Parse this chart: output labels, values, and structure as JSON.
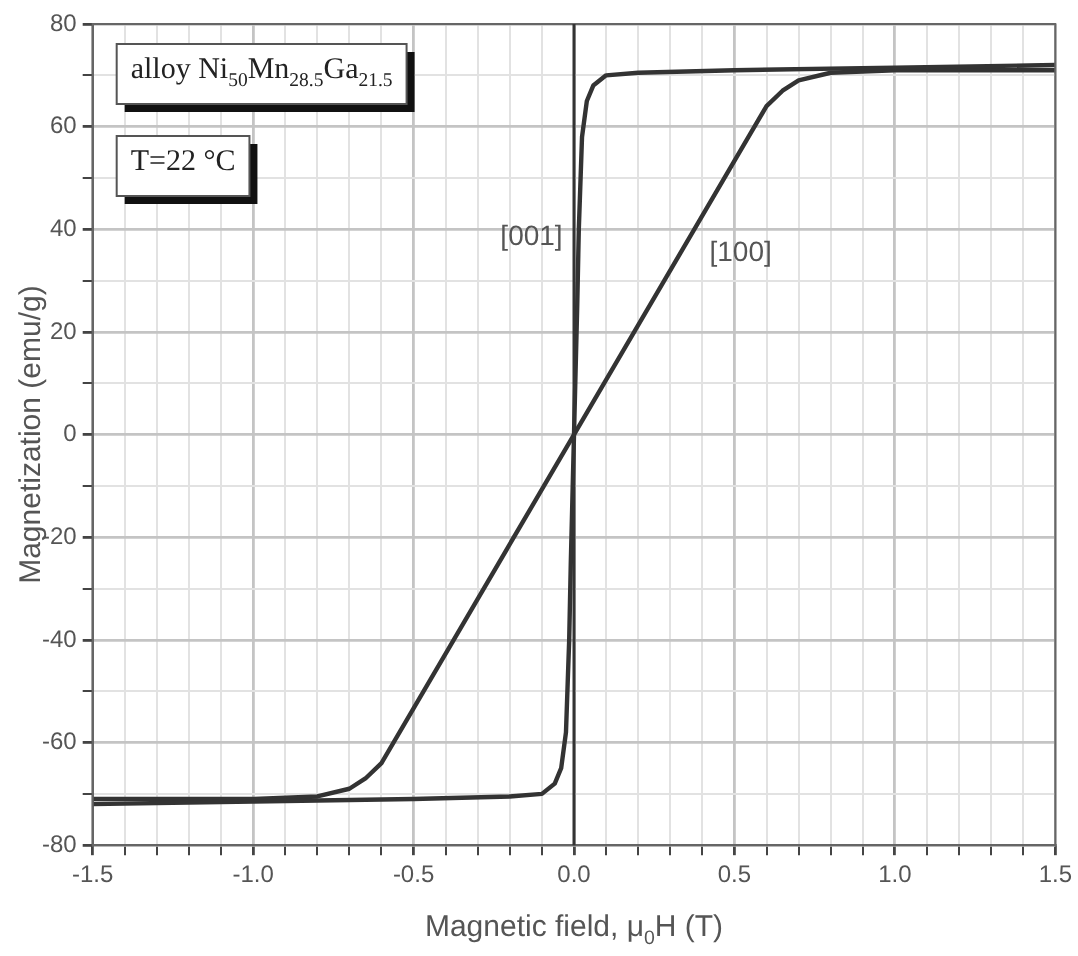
{
  "chart_data": {
    "type": "line",
    "xlabel": "Magnetic field, μ$_{0}$H (T)",
    "ylabel": "Magnetization (emu/g)",
    "xlim": [
      -1.5,
      1.5
    ],
    "ylim": [
      -80,
      80
    ],
    "xticks": [
      -1.5,
      {
        "value": -1.4,
        "label": null
      },
      {
        "value": -1.3,
        "label": null
      },
      {
        "value": -1.2,
        "label": null
      },
      {
        "value": -1.1,
        "label": null
      },
      {
        "value": -1.0,
        "label": "-1.0"
      },
      {
        "value": -0.9,
        "label": null
      },
      {
        "value": -0.8,
        "label": null
      },
      {
        "value": -0.7,
        "label": null
      },
      {
        "value": -0.6,
        "label": null
      },
      -0.5,
      {
        "value": -0.4,
        "label": null
      },
      {
        "value": -0.3,
        "label": null
      },
      {
        "value": -0.2,
        "label": null
      },
      {
        "value": -0.1,
        "label": null
      },
      {
        "value": 0,
        "label": "0.0"
      },
      {
        "value": 0.1,
        "label": null
      },
      {
        "value": 0.2,
        "label": null
      },
      {
        "value": 0.3,
        "label": null
      },
      {
        "value": 0.4,
        "label": null
      },
      0.5,
      {
        "value": 0.6,
        "label": null
      },
      {
        "value": 0.7,
        "label": null
      },
      {
        "value": 0.8,
        "label": null
      },
      {
        "value": 0.9,
        "label": null
      },
      {
        "value": 1.0,
        "label": "1.0"
      },
      {
        "value": 1.1,
        "label": null
      },
      {
        "value": 1.2,
        "label": null
      },
      {
        "value": 1.3,
        "label": null
      },
      {
        "value": 1.4,
        "label": null
      },
      1.5
    ],
    "yticks": [
      -80,
      {
        "value": -70,
        "label": null
      },
      -60,
      {
        "value": -50,
        "label": null
      },
      -40,
      {
        "value": -30,
        "label": null
      },
      -20,
      {
        "value": -10,
        "label": null
      },
      0,
      {
        "value": 10,
        "label": null
      },
      20,
      {
        "value": 30,
        "label": null
      },
      40,
      {
        "value": 50,
        "label": null
      },
      60,
      {
        "value": 70,
        "label": null
      },
      80
    ],
    "grid": true,
    "legend": false,
    "marker": "none",
    "line_style": "solid",
    "series": [
      {
        "name": "[001]",
        "color": "#333333",
        "x": [
          -1.5,
          -1.0,
          -0.5,
          -0.2,
          -0.1,
          -0.06,
          -0.04,
          -0.025,
          -0.015,
          -0.01,
          0,
          0.01,
          0.015,
          0.025,
          0.04,
          0.06,
          0.1,
          0.2,
          0.5,
          1.0,
          1.5
        ],
        "values": [
          -72,
          -71.5,
          -71,
          -70.5,
          -70,
          -68,
          -65,
          -58,
          -40,
          -25,
          0,
          25,
          40,
          58,
          65,
          68,
          70,
          70.5,
          71,
          71.5,
          72
        ]
      },
      {
        "name": "[100]",
        "color": "#333333",
        "x": [
          -1.5,
          -1.0,
          -0.8,
          -0.7,
          -0.65,
          -0.6,
          0,
          0.6,
          0.65,
          0.7,
          0.8,
          1.0,
          1.5
        ],
        "values": [
          -71,
          -71,
          -70.5,
          -69,
          -67,
          -64,
          0,
          64,
          67,
          69,
          70.5,
          71,
          71
        ]
      }
    ],
    "ref_lines": [
      {
        "axis": "x",
        "value": 0,
        "color": "#333333"
      }
    ],
    "annotations": [
      "alloy Ni$_{50}$Mn$_{28.5}$Ga$_{21.5}$",
      "T=22 °C"
    ]
  }
}
